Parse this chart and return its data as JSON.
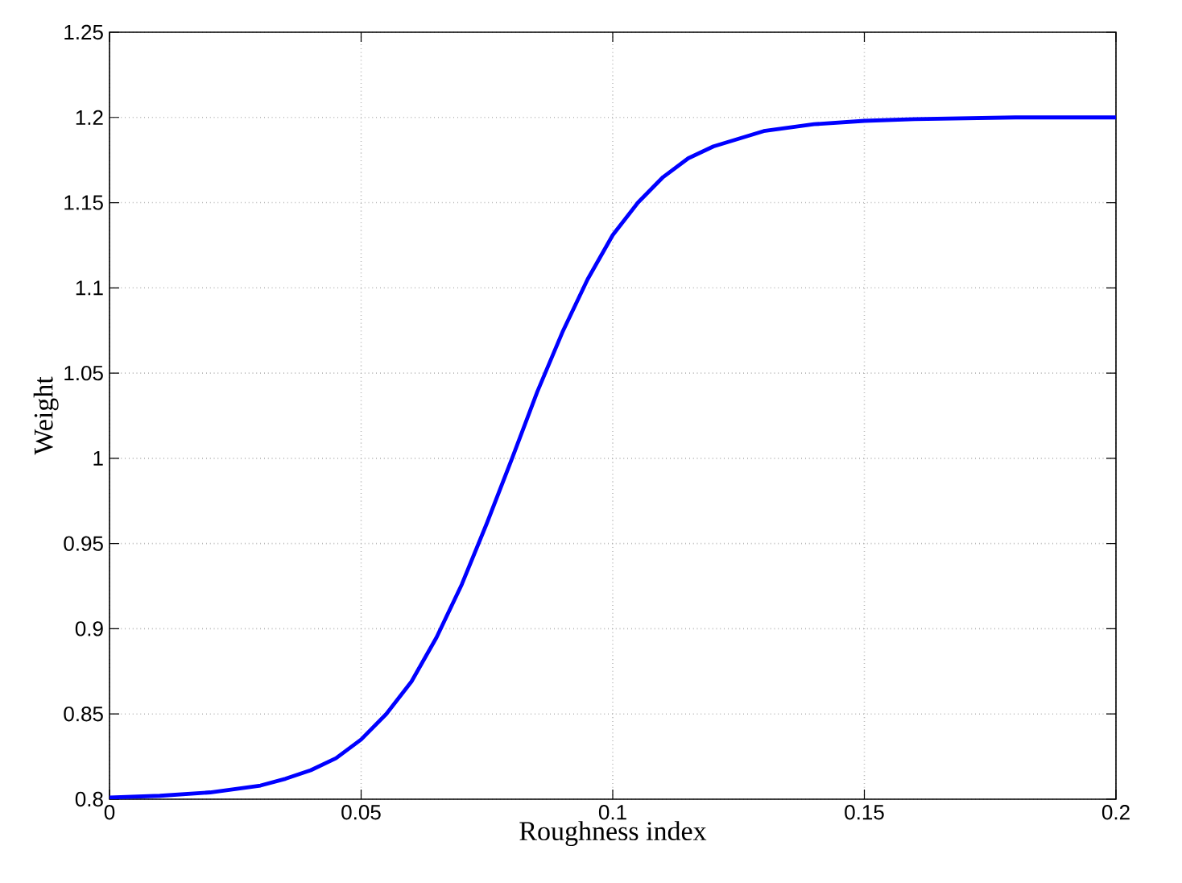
{
  "chart_data": {
    "type": "line",
    "xlabel": "Roughness index",
    "ylabel": "Weight",
    "x": [
      0,
      0.01,
      0.02,
      0.03,
      0.035,
      0.04,
      0.045,
      0.05,
      0.055,
      0.06,
      0.065,
      0.07,
      0.075,
      0.08,
      0.085,
      0.09,
      0.095,
      0.1,
      0.105,
      0.11,
      0.115,
      0.12,
      0.13,
      0.14,
      0.15,
      0.16,
      0.18,
      0.2
    ],
    "series": [
      {
        "color": "#0000ff",
        "values": [
          0.801,
          0.802,
          0.804,
          0.808,
          0.812,
          0.817,
          0.824,
          0.835,
          0.85,
          0.869,
          0.895,
          0.926,
          0.962,
          1.0,
          1.039,
          1.074,
          1.105,
          1.131,
          1.15,
          1.165,
          1.176,
          1.183,
          1.192,
          1.196,
          1.198,
          1.199,
          1.2,
          1.2
        ]
      }
    ],
    "xlim": [
      0,
      0.2
    ],
    "ylim": [
      0.8,
      1.25
    ],
    "xticks": [
      0,
      0.05,
      0.1,
      0.15,
      0.2
    ],
    "yticks": [
      0.8,
      0.85,
      0.9,
      0.95,
      1,
      1.05,
      1.1,
      1.15,
      1.2,
      1.25
    ],
    "grid": true,
    "line_style": "solid",
    "marker": "none"
  }
}
